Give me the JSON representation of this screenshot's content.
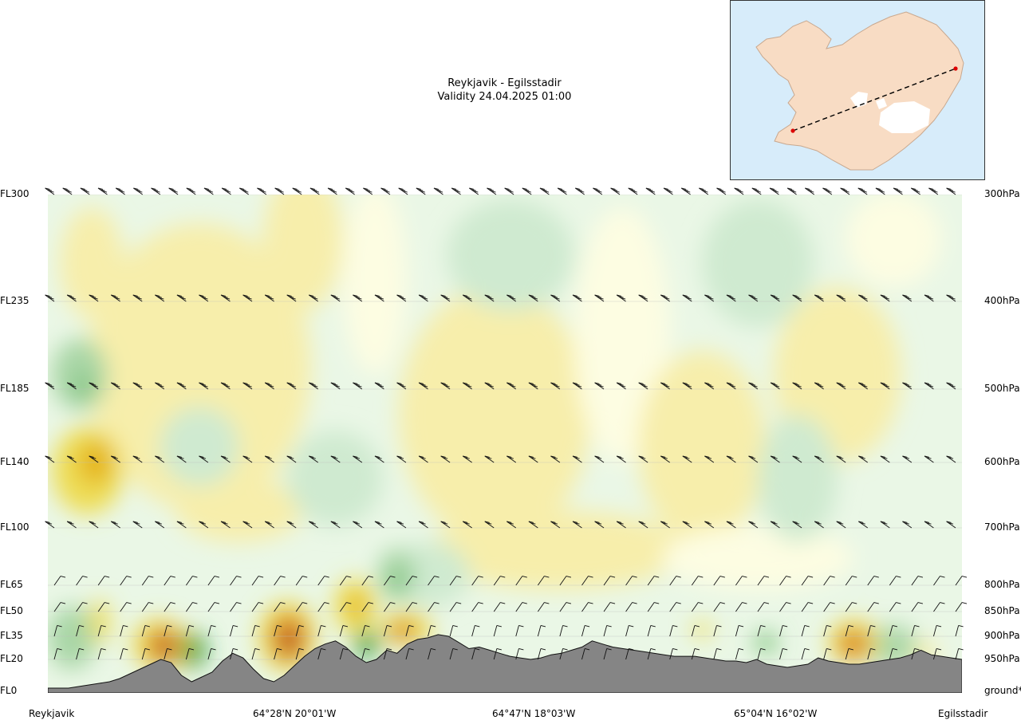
{
  "title": "Reykjavik - Egilsstadir",
  "validity": "Validity 24.04.2025 01:00",
  "colors": {
    "ground": "#858585",
    "ground_edge": "#111111",
    "green_1": "#eaf7e6",
    "green_2": "#cfead0",
    "green_3": "#a8d6a6",
    "green_4": "#6fbd70",
    "green_5": "#2c9a38",
    "yellow_1": "#fdfde2",
    "yellow_2": "#f7eeab",
    "yellow_3": "#eedd55",
    "yellow_4": "#e5b415",
    "orange_5": "#d9781a",
    "brown_6": "#b0562a",
    "wind_barb": "#111111",
    "map_sea": "#d7ecfa",
    "map_land": "#f8dcc4",
    "map_route": "#000000",
    "map_endpoint": "#dd0000"
  },
  "chart_data": {
    "type": "heatmap",
    "subtype": "vertical cross-section",
    "title": "Reykjavik - Egilsstadir",
    "subtitle": "Validity 24.04.2025 01:00",
    "y_levels": [
      {
        "fl": "FL300",
        "hpa": "300hPa",
        "fl_value": 300
      },
      {
        "fl": "FL235",
        "hpa": "400hPa",
        "fl_value": 235
      },
      {
        "fl": "FL185",
        "hpa": "500hPa",
        "fl_value": 185
      },
      {
        "fl": "FL140",
        "hpa": "600hPa",
        "fl_value": 140
      },
      {
        "fl": "FL100",
        "hpa": "700hPa",
        "fl_value": 100
      },
      {
        "fl": "FL65",
        "hpa": "800hPa",
        "fl_value": 65
      },
      {
        "fl": "FL50",
        "hpa": "850hPa",
        "fl_value": 50
      },
      {
        "fl": "FL35",
        "hpa": "900hPa",
        "fl_value": 35
      },
      {
        "fl": "FL20",
        "hpa": "950hPa",
        "fl_value": 20
      },
      {
        "fl": "FL0",
        "hpa": "ground*",
        "fl_value": 0
      }
    ],
    "x_locations": [
      {
        "label": "Reykjavik",
        "fraction": 0.0
      },
      {
        "label": "64°28'N 20°01'W",
        "fraction": 0.25
      },
      {
        "label": "64°47'N 18°03'W",
        "fraction": 0.5
      },
      {
        "label": "65°04'N 16°02'W",
        "fraction": 0.75
      },
      {
        "label": "Egilsstadir",
        "fraction": 1.0
      }
    ],
    "terrain_profile_fl": [
      2,
      2,
      2,
      3,
      4,
      5,
      6,
      8,
      11,
      14,
      17,
      20,
      18,
      10,
      6,
      9,
      12,
      19,
      24,
      21,
      14,
      8,
      6,
      10,
      16,
      22,
      27,
      30,
      32,
      28,
      22,
      18,
      20,
      26,
      24,
      30,
      33,
      34,
      36,
      35,
      31,
      27,
      28,
      26,
      24,
      22,
      21,
      20,
      21,
      23,
      24,
      26,
      28,
      32,
      30,
      28,
      27,
      26,
      25,
      24,
      23,
      22,
      22,
      22,
      21,
      20,
      19,
      19,
      18,
      20,
      17,
      16,
      15,
      16,
      17,
      21,
      19,
      18,
      17,
      17,
      18,
      19,
      20,
      21,
      23,
      26,
      23,
      22,
      21,
      20
    ],
    "wind_barb_levels": [
      "FL300",
      "FL235",
      "FL185",
      "FL140",
      "FL100",
      "FL65",
      "FL50",
      "FL35",
      "FL20"
    ]
  }
}
